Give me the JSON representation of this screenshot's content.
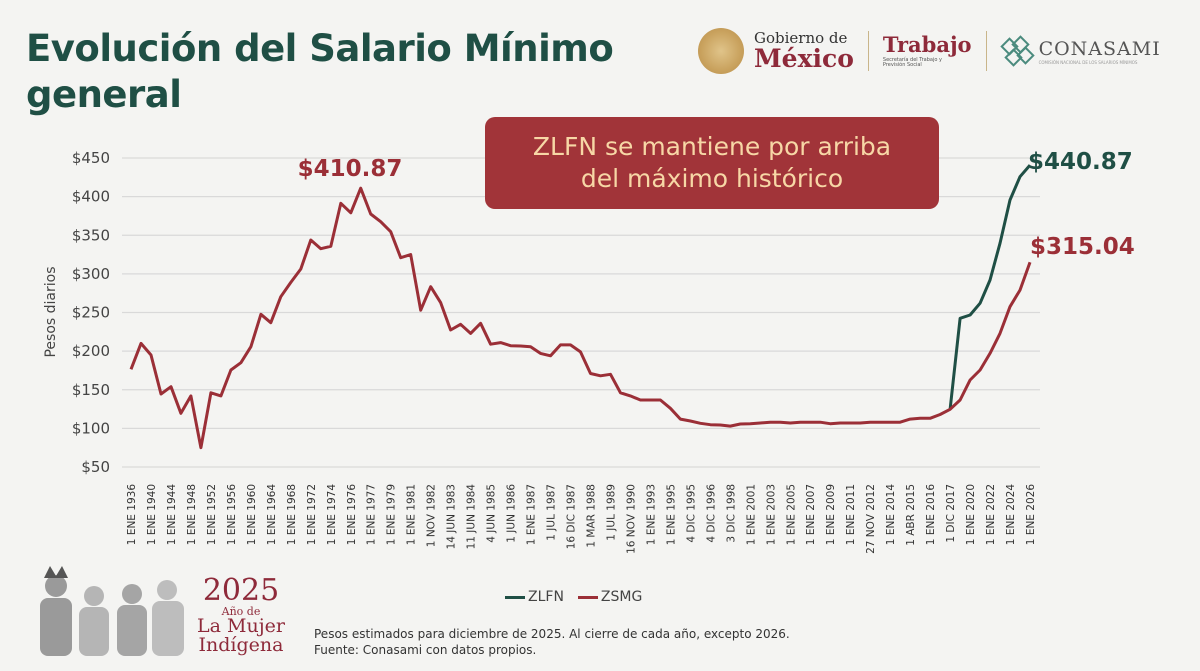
{
  "header": {
    "title_line1": "Evolución del Salario Mínimo",
    "title_line2": "general"
  },
  "logos": {
    "gobierno_line1": "Gobierno de",
    "gobierno_line2": "México",
    "trabajo": "Trabajo",
    "trabajo_sub": "Secretaría del Trabajo y Previsión Social",
    "conasami": "CONASAMI",
    "conasami_sub": "COMISIÓN NACIONAL DE LOS SALARIOS MÍNIMOS"
  },
  "callout": {
    "line1": "ZLFN se mantiene por arriba",
    "line2": "del máximo histórico"
  },
  "colors": {
    "zlfn": "#1f4f45",
    "zsmg": "#9b2f37",
    "title": "#1f4f45",
    "callout_bg": "#a13439",
    "callout_text": "#f7d7a6"
  },
  "chart_data": {
    "type": "line",
    "ylabel": "Pesos diarios",
    "ylim": [
      50,
      450
    ],
    "yticks": [
      "$50",
      "$100",
      "$150",
      "$200",
      "$250",
      "$300",
      "$350",
      "$400",
      "$450"
    ],
    "ytick_values": [
      50,
      100,
      150,
      200,
      250,
      300,
      350,
      400,
      450
    ],
    "grid": true,
    "legend_position": "bottom-center",
    "xtick_labels": [
      "1 ENE 1936",
      "1 ENE 1940",
      "1 ENE 1944",
      "1 ENE 1948",
      "1 ENE 1952",
      "1 ENE 1956",
      "1 ENE 1960",
      "1 ENE 1964",
      "1 ENE 1968",
      "1 ENE 1972",
      "1 ENE 1974",
      "1 ENE 1976",
      "1 ENE 1977",
      "1 ENE 1979",
      "1 ENE 1981",
      "1 NOV 1982",
      "14 JUN 1983",
      "11 JUN 1984",
      "4 JUN 1985",
      "1 JUN 1986",
      "1 ENE 1987",
      "1 JUL 1987",
      "16 DIC 1987",
      "1 MAR 1988",
      "1 JUL 1989",
      "16 NOV 1990",
      "1 ENE 1993",
      "1 ENE 1995",
      "4 DIC 1995",
      "4 DIC 1996",
      "3 DIC 1998",
      "1 ENE 2001",
      "1 ENE 2003",
      "1 ENE 2005",
      "1 ENE 2007",
      "1 ENE 2009",
      "1 ENE 2011",
      "27 NOV 2012",
      "1 ENE 2014",
      "1 ABR 2015",
      "1 ENE 2016",
      "1 DIC 2017",
      "1 ENE 2020",
      "1 ENE 2022",
      "1 ENE 2024",
      "1 ENE 2026"
    ],
    "series": [
      {
        "name": "ZLFN",
        "values": [
          null,
          null,
          null,
          null,
          null,
          null,
          null,
          null,
          null,
          null,
          null,
          null,
          null,
          null,
          null,
          null,
          null,
          null,
          null,
          null,
          null,
          null,
          null,
          null,
          null,
          null,
          null,
          null,
          null,
          null,
          null,
          null,
          null,
          null,
          null,
          null,
          null,
          null,
          null,
          null,
          null,
          null,
          null,
          null,
          null,
          null,
          null,
          null,
          null,
          null,
          null,
          null,
          null,
          null,
          null,
          null,
          null,
          null,
          null,
          null,
          null,
          null,
          null,
          null,
          null,
          null,
          null,
          null,
          null,
          null,
          null,
          null,
          null,
          null,
          null,
          null,
          null,
          null,
          null,
          null,
          null,
          null,
          124.7,
          242.5,
          246.8,
          262,
          292,
          339.6,
          395.6,
          425.8,
          440.87
        ]
      },
      {
        "name": "ZSMG",
        "values": [
          176.5,
          210,
          195,
          144.5,
          154,
          119.5,
          142,
          75,
          146,
          142,
          175.6,
          185,
          205.7,
          247.7,
          236.8,
          270.5,
          289,
          306.3,
          343.8,
          332.6,
          335.7,
          391.4,
          379,
          410.87,
          377.5,
          367.5,
          354.6,
          321,
          325,
          253,
          283.4,
          262.7,
          227.3,
          234.7,
          223,
          236,
          209,
          211,
          207,
          206.6,
          205.7,
          197,
          194,
          208,
          208,
          199,
          171,
          168,
          170,
          146,
          142,
          136.7,
          136.7,
          136.7,
          126,
          112,
          109.5,
          106.6,
          104.8,
          104.4,
          103,
          105.7,
          106,
          107,
          108,
          108,
          107,
          108,
          108,
          108,
          106,
          107,
          107,
          107,
          108,
          108,
          108,
          108,
          112,
          113,
          113,
          118,
          124.7,
          136.7,
          162.6,
          175.6,
          197,
          223,
          257.5,
          279,
          315.04
        ]
      }
    ],
    "annotations": [
      {
        "text": "$410.87",
        "series": "ZSMG",
        "point_index": 23
      },
      {
        "text": "$440.87",
        "series": "ZLFN",
        "point_index": 90
      },
      {
        "text": "$315.04",
        "series": "ZSMG",
        "point_index": 90
      }
    ]
  },
  "legend": {
    "zlfn": "ZLFN",
    "zsmg": "ZSMG"
  },
  "notes": {
    "line1": "Pesos estimados para diciembre de 2025. Al cierre de cada año, excepto 2026.",
    "line2": "Fuente: Conasami con datos propios."
  },
  "badge": {
    "year": "2025",
    "line2": "Año de",
    "line3": "La Mujer",
    "line4": "Indígena"
  }
}
